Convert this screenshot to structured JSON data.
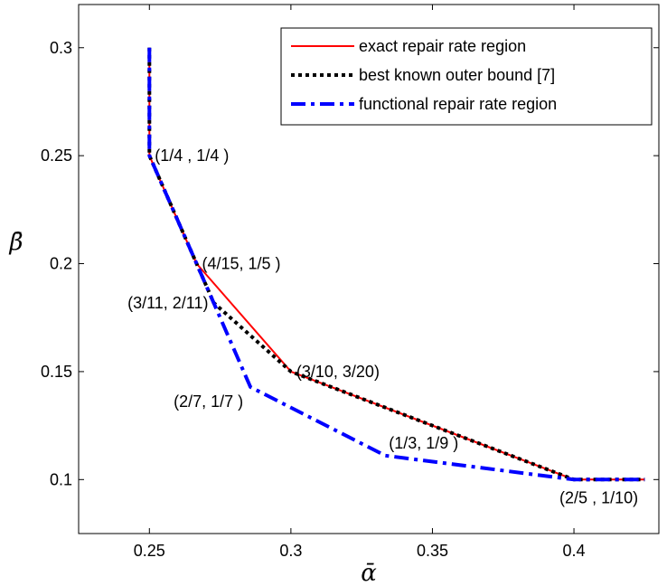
{
  "chart_data": {
    "type": "line",
    "xlabel": "ᾱ",
    "ylabel": "β̄",
    "xlim": [
      0.225,
      0.43
    ],
    "ylim": [
      0.075,
      0.32
    ],
    "x_ticks": [
      0.25,
      0.3,
      0.35,
      0.4
    ],
    "x_tick_labels": [
      "0.25",
      "0.3",
      "0.35",
      "0.4"
    ],
    "y_ticks": [
      0.1,
      0.15,
      0.2,
      0.25,
      0.3
    ],
    "y_tick_labels": [
      "0.1",
      "0.15",
      "0.2",
      "0.25",
      "0.3"
    ],
    "grid": false,
    "legend_position": "top-right",
    "series": [
      {
        "name": "exact repair rate region",
        "color": "#ff0000",
        "style": "solid",
        "x": [
          0.25,
          0.25,
          0.26667,
          0.3,
          0.4,
          0.425
        ],
        "y": [
          0.3,
          0.25,
          0.2,
          0.15,
          0.1,
          0.1
        ]
      },
      {
        "name": "best known outer bound [7]",
        "color": "#000000",
        "style": "dotted",
        "x": [
          0.25,
          0.25,
          0.26667,
          0.27273,
          0.3,
          0.4,
          0.425
        ],
        "y": [
          0.3,
          0.25,
          0.2,
          0.18182,
          0.15,
          0.1,
          0.1
        ]
      },
      {
        "name": "functional repair rate region",
        "color": "#0000ff",
        "style": "dashdot",
        "x": [
          0.25,
          0.25,
          0.26667,
          0.28571,
          0.33333,
          0.4,
          0.425
        ],
        "y": [
          0.3,
          0.25,
          0.2,
          0.14286,
          0.11111,
          0.1,
          0.1
        ]
      }
    ],
    "annotations": [
      {
        "text": "(1/4 , 1/4 )",
        "x": 0.25,
        "y": 0.25,
        "anchor": "right"
      },
      {
        "text": "(4/15, 1/5 )",
        "x": 0.26667,
        "y": 0.2,
        "anchor": "right"
      },
      {
        "text": "(3/11, 2/11)",
        "x": 0.27273,
        "y": 0.18182,
        "anchor": "left"
      },
      {
        "text": "(3/10, 3/20)",
        "x": 0.3,
        "y": 0.15,
        "anchor": "right"
      },
      {
        "text": "(2/7, 1/7 )",
        "x": 0.28571,
        "y": 0.14286,
        "anchor": "below-left"
      },
      {
        "text": "(1/3, 1/9 )",
        "x": 0.33333,
        "y": 0.11111,
        "anchor": "above-right"
      },
      {
        "text": "(2/5 , 1/10)",
        "x": 0.4,
        "y": 0.1,
        "anchor": "below-right"
      }
    ]
  }
}
